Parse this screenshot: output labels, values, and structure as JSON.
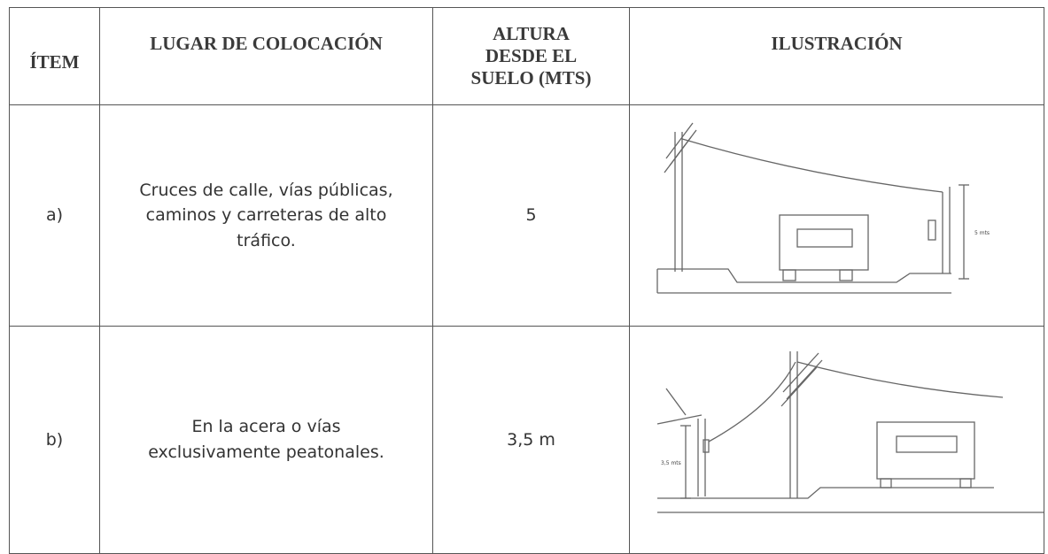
{
  "table": {
    "header": [
      "ÍTEM",
      "LUGAR DE COLOCACIÓN",
      "ALTURA DESDE EL SUELO (MTS)",
      "ILUSTRACIÓN"
    ],
    "rows": [
      [
        "a)",
        "Cruces de calle, vías públicas, caminos y carreteras de alto tráfico.",
        "5"
      ],
      [
        "b)",
        "En la acera o vías exclusivamente peatonales.",
        "3,5 m"
      ]
    ]
  },
  "illustrations": [
    {
      "label": "5 mts"
    },
    {
      "label": "3,5 mts"
    }
  ]
}
